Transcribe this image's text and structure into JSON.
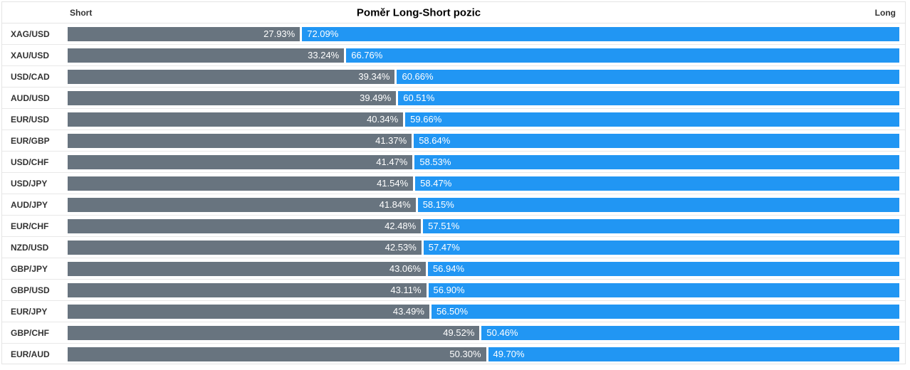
{
  "header": {
    "title": "Poměr Long-Short pozic",
    "short_label": "Short",
    "long_label": "Long"
  },
  "colors": {
    "short_bar": "#68747F",
    "long_bar": "#2196F3",
    "row_separator": "#E8E8E8",
    "label_text": "#333333",
    "bar_value_text": "#FFFFFF"
  },
  "chart_data": {
    "type": "bar",
    "orientation": "horizontal",
    "title": "Poměr Long-Short pozic",
    "left_header": "Short",
    "right_header": "Long",
    "legend": "none",
    "grid": "row-separators",
    "xlim": [
      0,
      100
    ],
    "value_suffix": "%",
    "categories": [
      "XAG/USD",
      "XAU/USD",
      "USD/CAD",
      "AUD/USD",
      "EUR/USD",
      "EUR/GBP",
      "USD/CHF",
      "USD/JPY",
      "AUD/JPY",
      "EUR/CHF",
      "NZD/USD",
      "GBP/JPY",
      "GBP/USD",
      "EUR/JPY",
      "GBP/CHF",
      "EUR/AUD"
    ],
    "series": [
      {
        "name": "Short",
        "color": "#68747F",
        "values": [
          27.93,
          33.24,
          39.34,
          39.49,
          40.34,
          41.37,
          41.47,
          41.54,
          41.84,
          42.48,
          42.53,
          43.06,
          43.11,
          43.49,
          49.52,
          50.3
        ]
      },
      {
        "name": "Long",
        "color": "#2196F3",
        "values": [
          72.09,
          66.76,
          60.66,
          60.51,
          59.66,
          58.64,
          58.53,
          58.47,
          58.15,
          57.51,
          57.47,
          56.94,
          56.9,
          56.5,
          50.46,
          49.7
        ]
      }
    ]
  }
}
